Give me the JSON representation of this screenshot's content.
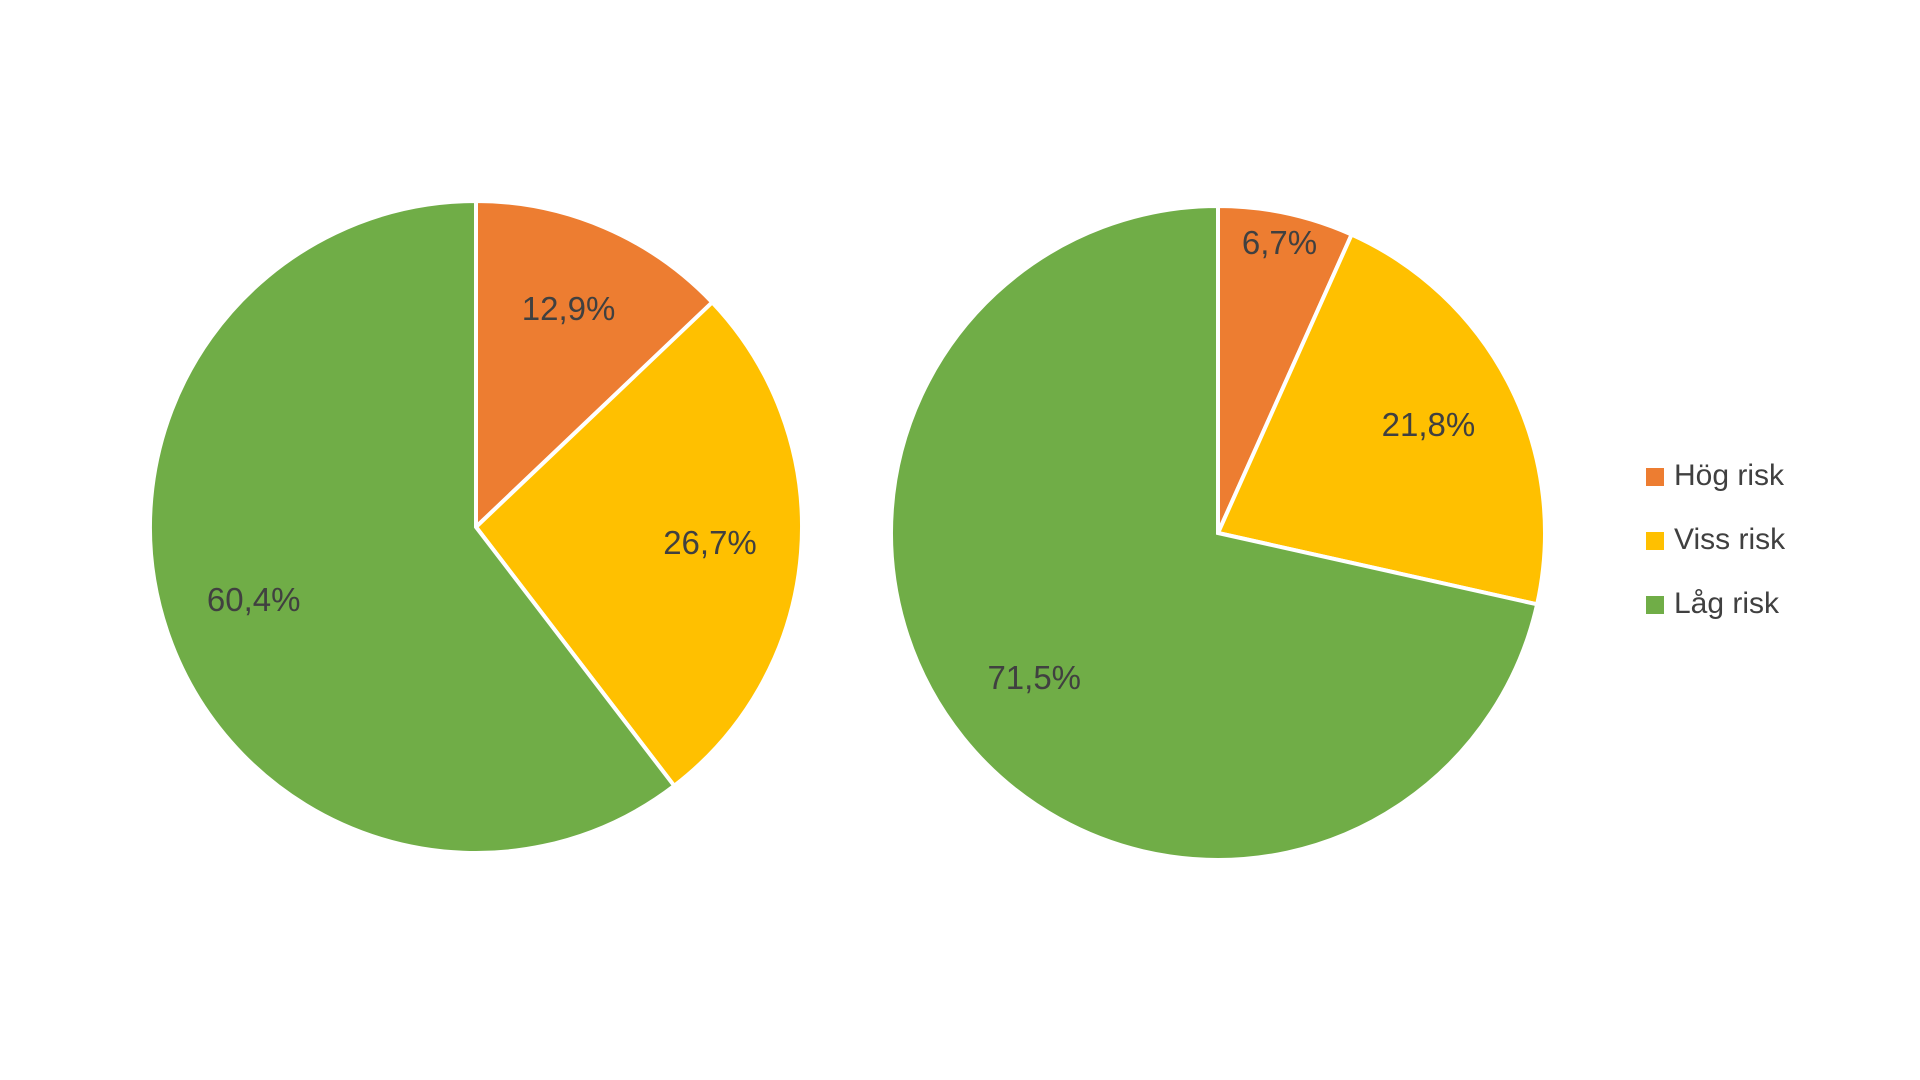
{
  "chart_data": [
    {
      "type": "pie",
      "values": [
        12.9,
        26.7,
        60.4
      ],
      "value_labels": [
        "12,9%",
        "26,7%",
        "60,4%"
      ],
      "colors": [
        "#ED7D31",
        "#FFC000",
        "#70AD47"
      ]
    },
    {
      "type": "pie",
      "categories": [
        "Hög risk",
        "Viss risk",
        "Låg risk"
      ],
      "values": [
        6.7,
        21.8,
        71.5
      ],
      "value_labels": [
        "6,7%",
        "21,8%",
        "71,5%"
      ],
      "colors": [
        "#ED7D31",
        "#FFC000",
        "#70AD47"
      ],
      "legend": "right"
    }
  ]
}
